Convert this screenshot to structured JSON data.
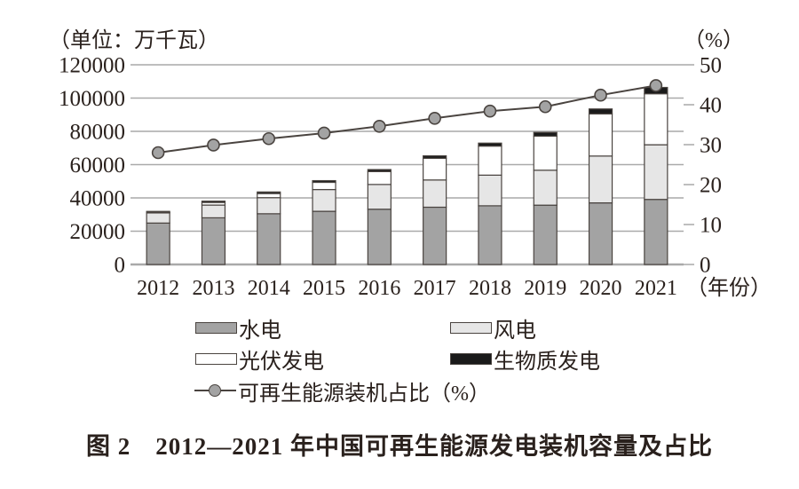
{
  "figure": {
    "unit_left": "（单位：万千瓦）",
    "unit_right": "（%）",
    "x_axis_suffix": "（年份）",
    "caption": "图 2　2012—2021 年中国可再生能源发电装机容量及占比"
  },
  "chart_data": {
    "type": "stacked-bar-with-line",
    "title": "图 2 2012—2021 年中国可再生能源发电装机容量及占比",
    "categories": [
      "2012",
      "2013",
      "2014",
      "2015",
      "2016",
      "2017",
      "2018",
      "2019",
      "2020",
      "2021"
    ],
    "series": [
      {
        "name": "水电",
        "type": "bar",
        "color": "#a3a3a3",
        "values": [
          24890,
          28044,
          30486,
          31954,
          33211,
          34411,
          35259,
          35640,
          37016,
          39092
        ]
      },
      {
        "name": "风电",
        "type": "bar",
        "color": "#e6e6e6",
        "values": [
          6083,
          7652,
          9657,
          13075,
          14864,
          16367,
          18427,
          21005,
          28153,
          32848
        ]
      },
      {
        "name": "光伏发电",
        "type": "bar",
        "color": "#ffffff",
        "values": [
          341,
          1589,
          2486,
          4318,
          7742,
          13025,
          17463,
          20468,
          25343,
          30656
        ]
      },
      {
        "name": "生物质发电",
        "type": "bar",
        "color": "#1a1a1a",
        "values": [
          579,
          779,
          946,
          1031,
          1214,
          1476,
          1781,
          2254,
          2952,
          3798
        ]
      },
      {
        "name": "可再生能源装机占比（%）",
        "type": "line",
        "axis": "right",
        "color": "#4a4440",
        "marker_fill": "#a3a3a3",
        "values": [
          28.0,
          29.9,
          31.5,
          32.9,
          34.6,
          36.6,
          38.4,
          39.5,
          42.4,
          44.8
        ]
      }
    ],
    "left_axis": {
      "title": "（单位：万千瓦）",
      "min": 0,
      "max": 120000,
      "step": 20000,
      "ticks": [
        0,
        20000,
        40000,
        60000,
        80000,
        100000,
        120000
      ]
    },
    "right_axis": {
      "title": "（%）",
      "min": 0,
      "max": 50,
      "step": 10,
      "ticks": [
        0,
        10,
        20,
        30,
        40,
        50
      ]
    },
    "x_axis_suffix": "（年份）",
    "grid": true,
    "legend_position": "bottom",
    "colors": {
      "grid": "#a9a9a9",
      "bar_border": "#4a4440",
      "text": "#2a211d"
    }
  },
  "legend": {
    "items": [
      {
        "label": "水电",
        "swatch": "hydro"
      },
      {
        "label": "风电",
        "swatch": "wind"
      },
      {
        "label": "光伏发电",
        "swatch": "solar"
      },
      {
        "label": "生物质发电",
        "swatch": "biomass"
      },
      {
        "label": "可再生能源装机占比（%）",
        "swatch": "line-marker"
      }
    ]
  }
}
